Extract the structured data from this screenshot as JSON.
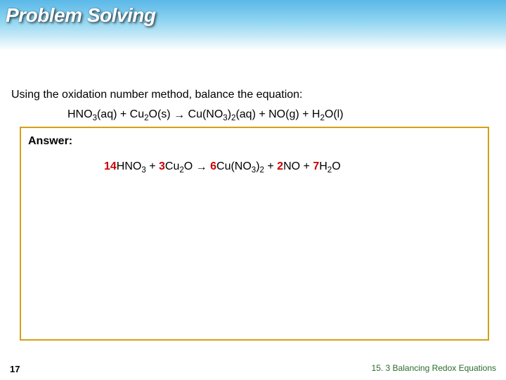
{
  "header": {
    "title_word1": "Problem",
    "title_word2": "Solving",
    "bg_gradient_top": "#5bb8e8",
    "bg_gradient_mid1": "#8dd4f0",
    "bg_gradient_mid2": "#c4e8f7",
    "bg_gradient_bottom": "#ffffff"
  },
  "prompt": "Using the oxidation number method, balance the equation:",
  "equation_unbalanced": {
    "r1": "HNO",
    "r1_sub": "3",
    "r1_state": "(aq)",
    "plus1": " + ",
    "r2": "Cu",
    "r2_sub": "2",
    "r2b": "O(s)",
    "arrow": " → ",
    "p1": "Cu(NO",
    "p1_sub1": "3",
    "p1_mid": ")",
    "p1_sub2": "2",
    "p1_state": "(aq)",
    "plus2": " + ",
    "p2": "NO(g)",
    "plus3": " + ",
    "p3": "H",
    "p3_sub": "2",
    "p3b": "O(l)"
  },
  "answer": {
    "label": "Answer:",
    "box_border_color": "#d4a017",
    "c1": "14",
    "r1": "HNO",
    "r1_sub": "3",
    "plus1": " + ",
    "c2": "3",
    "r2": "Cu",
    "r2_sub": "2",
    "r2b": "O",
    "arrow": " → ",
    "c3": "6",
    "p1": "Cu(NO",
    "p1_sub1": "3",
    "p1_mid": ")",
    "p1_sub2": "2",
    "plus2": " + ",
    "c4": "2",
    "p2": "NO",
    "plus3": " + ",
    "c5": "7",
    "p3": "H",
    "p3_sub": "2",
    "p3b": "O",
    "coef_color": "#cc0000"
  },
  "footer": {
    "page_num": "17",
    "section": "15. 3  Balancing Redox Equations",
    "section_color": "#2a6b2a"
  }
}
